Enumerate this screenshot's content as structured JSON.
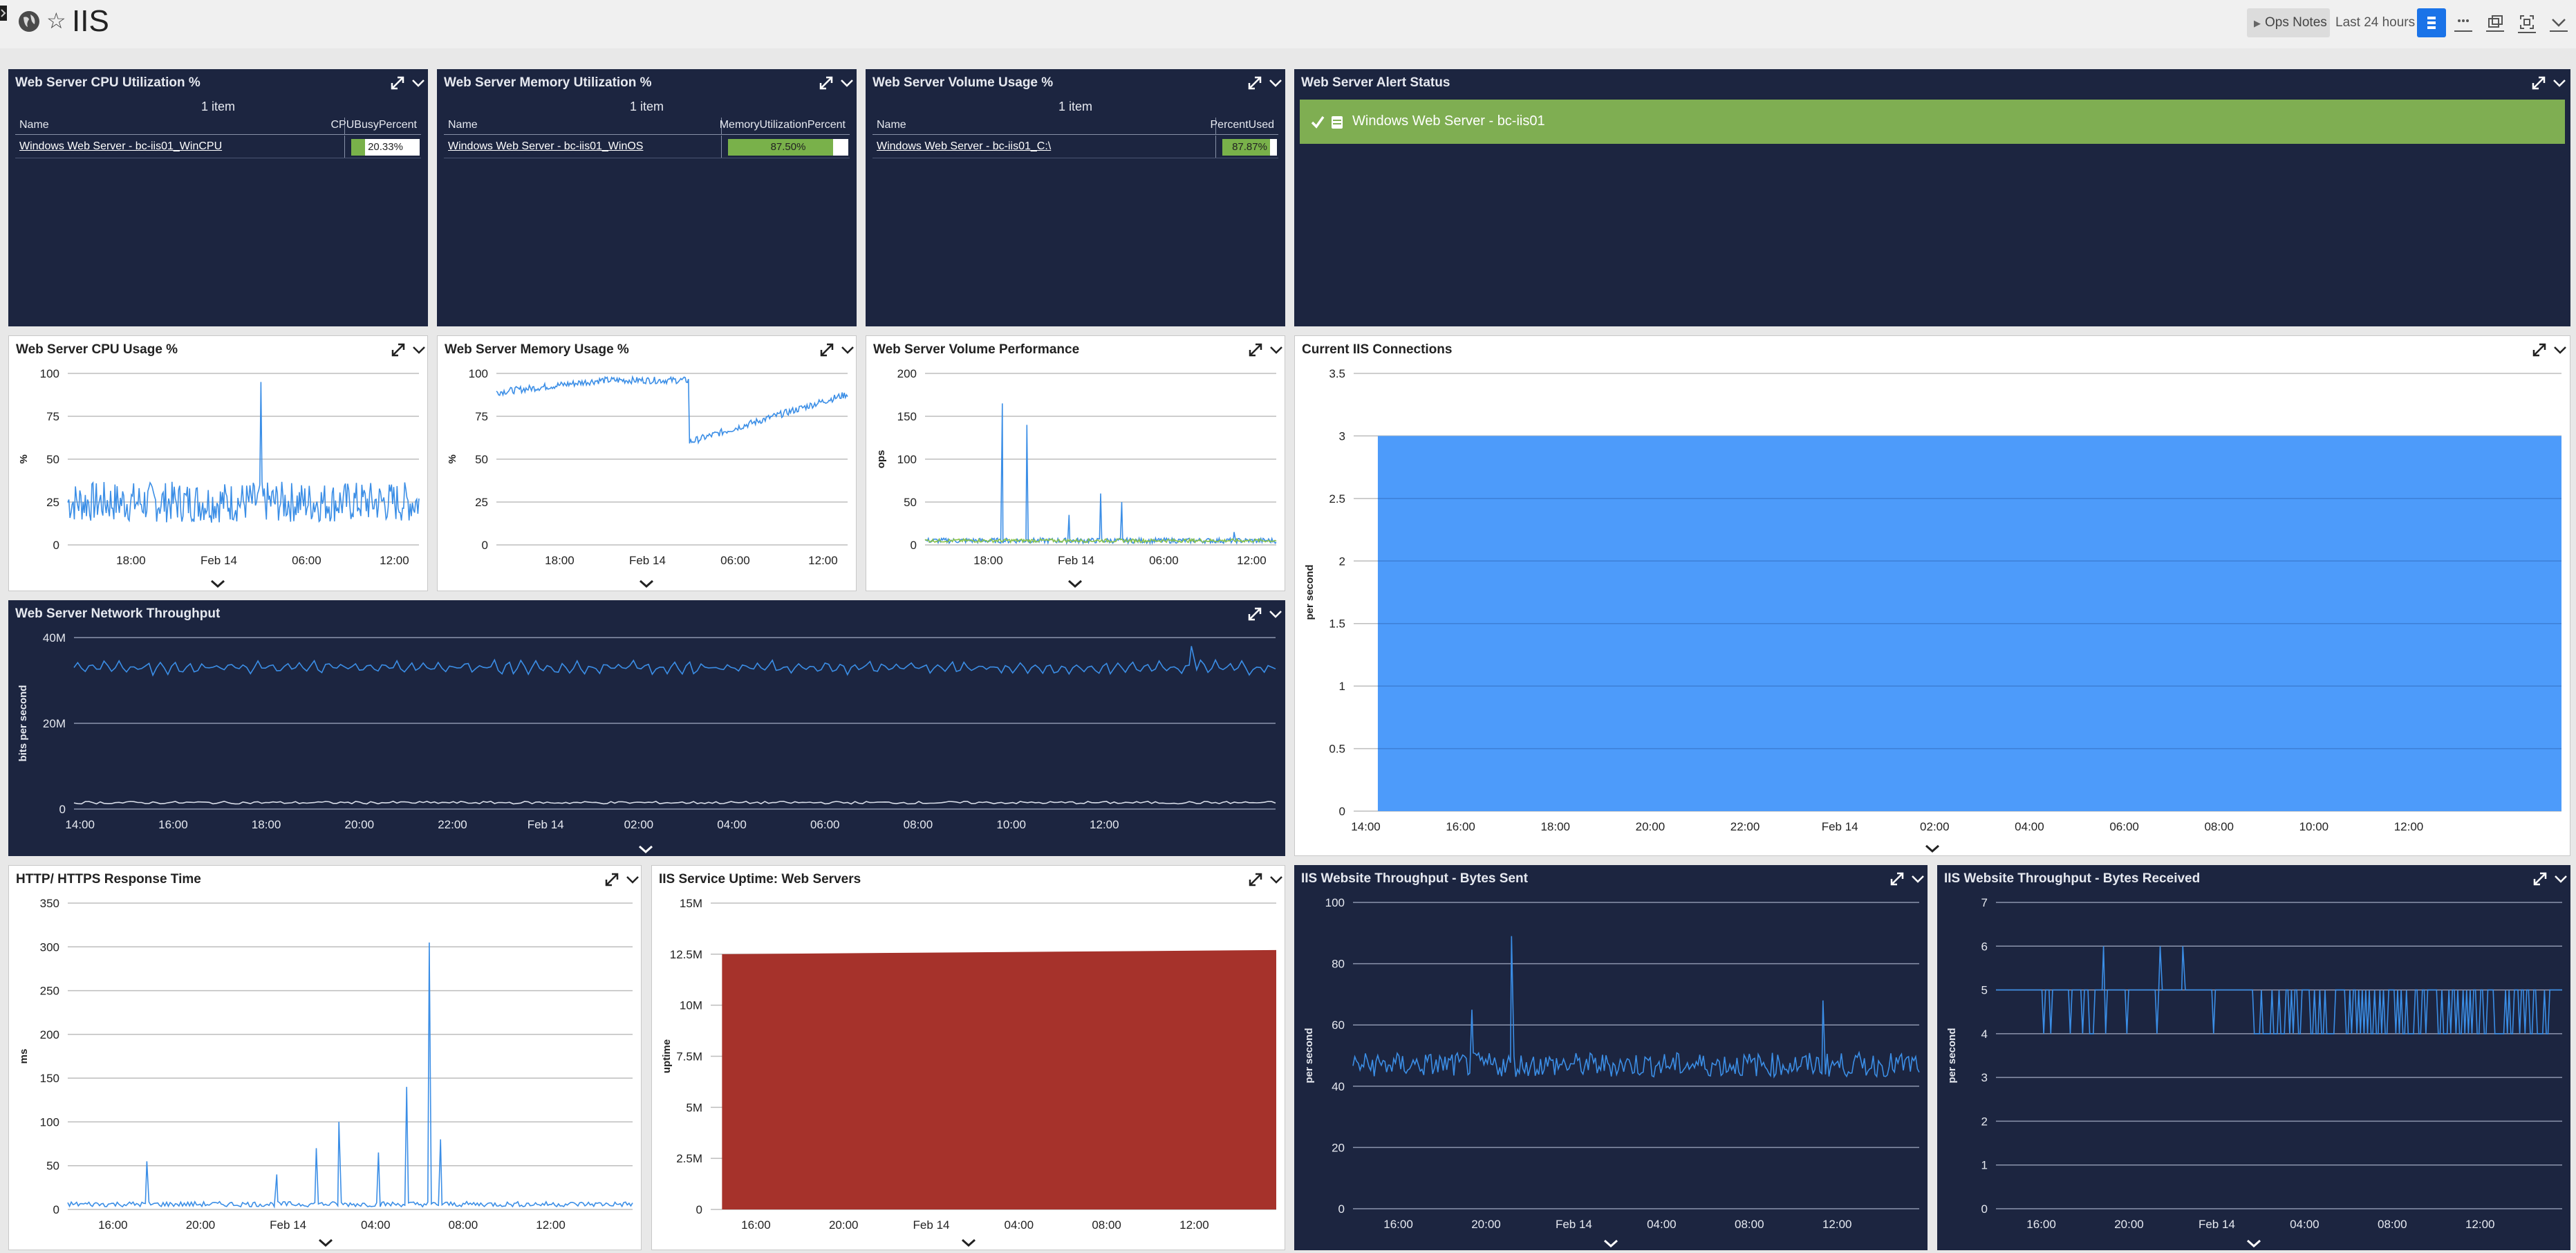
{
  "header": {
    "title": "IIS",
    "ops_notes": "Ops Notes",
    "time_range": "Last 24 hours",
    "ops_arrow": "▶"
  },
  "colors": {
    "dark_panel": "#1c2540",
    "series_blue": "#3b8ee6",
    "area_blue": "#4d9bfa",
    "area_red": "#a6322b",
    "status_green": "#7fae52",
    "bar_green": "#79b14a",
    "toolbar_active": "#1a73e8"
  },
  "icons": [
    "globe-icon",
    "star-icon",
    "expand-icon",
    "chevron-down-icon",
    "check-icon",
    "server-icon",
    "grid-icon",
    "dots-icon",
    "copy-icon",
    "fullscreen-icon"
  ],
  "tables": [
    {
      "title": "Web Server CPU Utilization %",
      "count": "1 item",
      "col_name": "Name",
      "col_value": "CPUBusyPercent",
      "row_name": "Windows Web Server - bc-iis01_WinCPU",
      "row_value": "20.33%",
      "fraction": 0.2033
    },
    {
      "title": "Web Server Memory Utilization %",
      "count": "1 item",
      "col_name": "Name",
      "col_value": "MemoryUtilizationPercent",
      "row_name": "Windows Web Server - bc-iis01_WinOS",
      "row_value": "87.50%",
      "fraction": 0.875
    },
    {
      "title": "Web Server Volume Usage %",
      "count": "1 item",
      "col_name": "Name",
      "col_value": "PercentUsed",
      "row_name": "Windows Web Server - bc-iis01_C:\\",
      "row_value": "87.87%",
      "fraction": 0.8787
    }
  ],
  "alert": {
    "title": "Web Server Alert Status",
    "label": "Windows Web Server - bc-iis01"
  },
  "chart_data": [
    {
      "id": "cpu",
      "type": "line",
      "title": "Web Server CPU Usage %",
      "ylabel": "%",
      "ylim": [
        0,
        100
      ],
      "yticks": [
        "0",
        "25",
        "50",
        "75",
        "100"
      ],
      "xticks": [
        "18:00",
        "Feb 14",
        "06:00",
        "12:00"
      ],
      "series": [
        {
          "base": 25,
          "noise": 12,
          "spikes": [
            [
              0.55,
              95
            ]
          ]
        }
      ]
    },
    {
      "id": "mem",
      "type": "line",
      "title": "Web Server Memory Usage %",
      "ylabel": "%",
      "ylim": [
        0,
        100
      ],
      "yticks": [
        "0",
        "25",
        "50",
        "75",
        "100"
      ],
      "xticks": [
        "18:00",
        "Feb 14",
        "06:00",
        "12:00"
      ],
      "series": [
        {
          "segments": [
            [
              0,
              89
            ],
            [
              0.3,
              96
            ],
            [
              0.55,
              96
            ],
            [
              0.55,
              60
            ],
            [
              1,
              88
            ]
          ],
          "noise": 2
        }
      ]
    },
    {
      "id": "vol",
      "type": "line",
      "title": "Web Server Volume Performance",
      "ylabel": "ops",
      "ylim": [
        0,
        200
      ],
      "yticks": [
        "0",
        "50",
        "100",
        "150",
        "200"
      ],
      "xticks": [
        "18:00",
        "Feb 14",
        "06:00",
        "12:00"
      ],
      "series": [
        {
          "base": 5,
          "noise": 3,
          "spikes": [
            [
              0.22,
              165
            ],
            [
              0.29,
              140
            ],
            [
              0.41,
              35
            ],
            [
              0.5,
              60
            ],
            [
              0.56,
              50
            ],
            [
              0.88,
              15
            ]
          ]
        },
        {
          "base": 5,
          "noise": 2,
          "spikes": []
        }
      ]
    },
    {
      "id": "net",
      "type": "line",
      "title": "Web Server Network Throughput",
      "ylabel": "bits per second",
      "ylim": [
        0,
        40
      ],
      "yticks": [
        "0",
        "20M",
        "40M"
      ],
      "xticks": [
        "14:00",
        "16:00",
        "18:00",
        "20:00",
        "22:00",
        "Feb 14",
        "02:00",
        "04:00",
        "06:00",
        "08:00",
        "10:00",
        "12:00"
      ],
      "series": [
        {
          "base": 33,
          "noise": 2,
          "spikes": [
            [
              0.93,
              38
            ]
          ]
        },
        {
          "base": 1.5,
          "noise": 0.3,
          "spikes": []
        }
      ]
    },
    {
      "id": "conn",
      "type": "area",
      "title": "Current IIS Connections",
      "ylabel": "per second",
      "ylim": [
        0,
        3.5
      ],
      "yticks": [
        "0",
        "0.5",
        "1",
        "1.5",
        "2",
        "2.5",
        "3",
        "3.5"
      ],
      "xticks": [
        "14:00",
        "16:00",
        "18:00",
        "20:00",
        "22:00",
        "Feb 14",
        "02:00",
        "04:00",
        "06:00",
        "08:00",
        "10:00",
        "12:00"
      ],
      "value": 3
    },
    {
      "id": "http",
      "type": "line",
      "title": "HTTP/ HTTPS Response Time",
      "ylabel": "ms",
      "ylim": [
        0,
        350
      ],
      "yticks": [
        "0",
        "50",
        "100",
        "150",
        "200",
        "250",
        "300",
        "350"
      ],
      "xticks": [
        "16:00",
        "20:00",
        "Feb 14",
        "04:00",
        "08:00",
        "12:00"
      ],
      "series": [
        {
          "base": 6,
          "noise": 3,
          "spikes": [
            [
              0.14,
              55
            ],
            [
              0.37,
              40
            ],
            [
              0.44,
              70
            ],
            [
              0.48,
              100
            ],
            [
              0.55,
              65
            ],
            [
              0.6,
              140
            ],
            [
              0.64,
              305
            ],
            [
              0.66,
              80
            ]
          ]
        }
      ]
    },
    {
      "id": "uptime",
      "type": "area",
      "title": "IIS Service Uptime: Web Servers",
      "ylabel": "uptime",
      "ylim": [
        0,
        15
      ],
      "yticks": [
        "0",
        "2.5M",
        "5M",
        "7.5M",
        "10M",
        "12.5M",
        "15M"
      ],
      "xticks": [
        "16:00",
        "20:00",
        "Feb 14",
        "04:00",
        "08:00",
        "12:00"
      ],
      "value_start": 12.5,
      "value_end": 12.7
    },
    {
      "id": "sent",
      "type": "line",
      "title": "IIS Website Throughput - Bytes Sent",
      "ylabel": "per second",
      "ylim": [
        0,
        100
      ],
      "yticks": [
        "0",
        "20",
        "40",
        "60",
        "80",
        "100"
      ],
      "xticks": [
        "16:00",
        "20:00",
        "Feb 14",
        "04:00",
        "08:00",
        "12:00"
      ],
      "series": [
        {
          "base": 47,
          "noise": 4,
          "spikes": [
            [
              0.21,
              65
            ],
            [
              0.28,
              89
            ],
            [
              0.83,
              68
            ]
          ]
        }
      ]
    },
    {
      "id": "recv",
      "type": "line",
      "title": "IIS Website Throughput - Bytes Received",
      "ylabel": "per second",
      "ylim": [
        0,
        7
      ],
      "yticks": [
        "0",
        "1",
        "2",
        "3",
        "4",
        "5",
        "6",
        "7"
      ],
      "xticks": [
        "16:00",
        "20:00",
        "Feb 14",
        "04:00",
        "08:00",
        "12:00"
      ],
      "series": [
        {
          "base": 5,
          "dips": 4,
          "spikes": [
            [
              0.19,
              6
            ],
            [
              0.29,
              6
            ],
            [
              0.33,
              6
            ]
          ]
        }
      ]
    }
  ]
}
